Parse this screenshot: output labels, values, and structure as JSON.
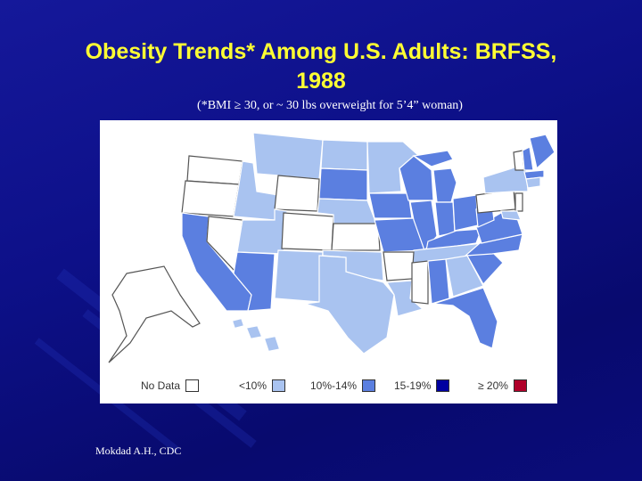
{
  "slide": {
    "title_line1": "Obesity Trends* Among U.S. Adults: BRFSS,",
    "title_line2": "1988",
    "subtitle": "(*BMI ≥ 30, or ~ 30 lbs overweight for 5’4” woman)",
    "source": "Mokdad A.H., CDC"
  },
  "legend": [
    {
      "label": "No Data",
      "color": "#ffffff"
    },
    {
      "label": "<10%",
      "color": "#a9c3f0"
    },
    {
      "label": "10%-14%",
      "color": "#a9c3f0"
    },
    {
      "label": "15-19%",
      "color": "#5b7fe0"
    },
    {
      "label": "≥ 20%",
      "color": "#0000a0"
    },
    {
      "label": "",
      "color": "#b0002a"
    }
  ],
  "colors": {
    "no_data": "#ffffff",
    "lt10": "#a9c3f0",
    "10_14": "#a9c3f0",
    "15_19": "#5b7fe0",
    "ge20": "#0000a0"
  }
}
